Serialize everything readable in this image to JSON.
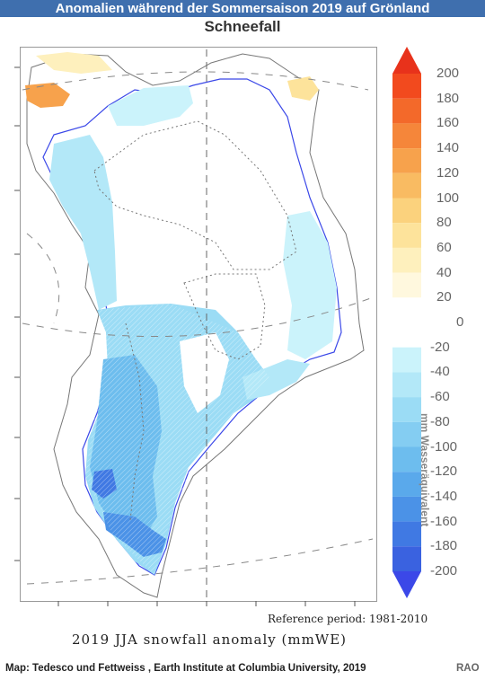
{
  "header": {
    "title": "Anomalien während der Sommersaison 2019 auf Grönland",
    "subtitle": "Schneefall"
  },
  "map": {
    "reference": "Reference period: 1981-2010",
    "caption": "2019 JJA snowfall anomaly (mmWE)"
  },
  "legend": {
    "unit": "mm Wasseräquivalent",
    "ticks": [
      "200",
      "180",
      "160",
      "140",
      "120",
      "100",
      "80",
      "60",
      "40",
      "20",
      "0",
      "-20",
      "-40",
      "-60",
      "-80",
      "-100",
      "-120",
      "-140",
      "-160",
      "-180",
      "-200"
    ],
    "colors_positive": [
      "#f24a1e",
      "#f3692a",
      "#f5863a",
      "#f7a24c",
      "#f9bb62",
      "#fbd27d",
      "#fde39b",
      "#fef0bd",
      "#fff8de"
    ],
    "colors_negative": [
      "#cbf3fb",
      "#b3e8f8",
      "#9bdcf5",
      "#84cdf2",
      "#6dbdee",
      "#5aa9eb",
      "#4b92e7",
      "#4079e3",
      "#3a62e0"
    ],
    "top_arrow_color": "#e8321b",
    "bottom_arrow_color": "#3b48e8"
  },
  "footer": {
    "credit": "Map: Tedesco und Fettweiss , Earth Institute at Columbia University, 2019",
    "logo": "RAO"
  }
}
